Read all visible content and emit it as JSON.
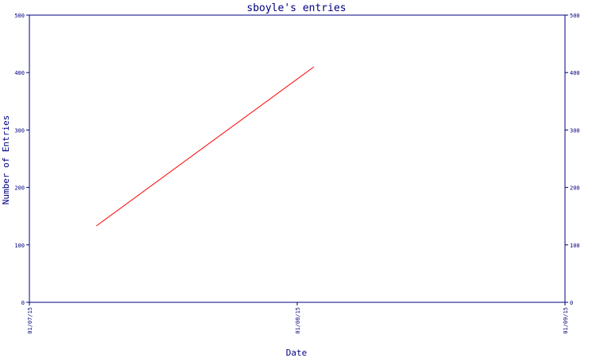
{
  "chart_data": {
    "type": "line",
    "title": "sboyle's entries",
    "xlabel": "Date",
    "ylabel": "Number of Entries",
    "ylim": [
      0,
      500
    ],
    "yticks": [
      0,
      100,
      200,
      300,
      400,
      500
    ],
    "xticks": [
      "01/07/15",
      "01/08/15",
      "01/09/15"
    ],
    "series": [
      {
        "x": [
          "2015-01-07T06:00",
          "2015-01-08T01:30"
        ],
        "values": [
          133,
          410
        ]
      }
    ],
    "grid": false,
    "right_axis": true,
    "colors": {
      "axis": "#000080",
      "line": "#ff0000",
      "background": "#ffffff"
    }
  }
}
